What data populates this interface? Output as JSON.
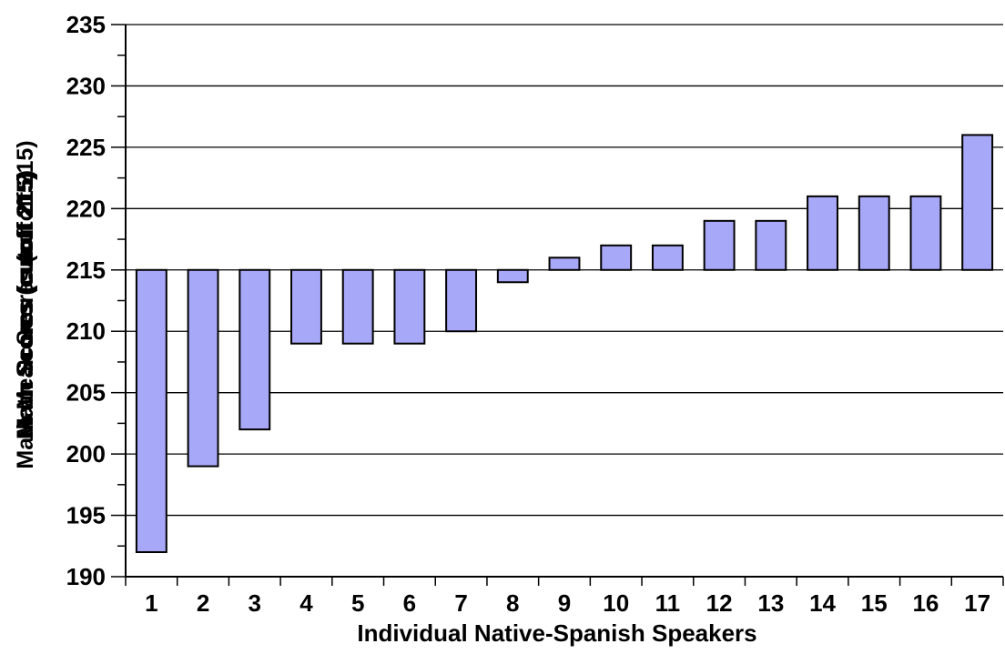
{
  "chart_data": {
    "type": "bar",
    "title": "",
    "xlabel": "Individual Native-Spanish Speakers",
    "ylabel_overlapping": [
      "Math Scores (cutoff 215)",
      "Mean Scores (cutoff 215)",
      "Math Mean Scores (cutoff 215)"
    ],
    "baseline": 215,
    "ylim": [
      190,
      235
    ],
    "yticks": [
      190,
      195,
      200,
      205,
      210,
      215,
      220,
      225,
      230,
      235
    ],
    "categories": [
      "1",
      "2",
      "3",
      "4",
      "5",
      "6",
      "7",
      "8",
      "9",
      "10",
      "11",
      "12",
      "13",
      "14",
      "15",
      "16",
      "17"
    ],
    "series": [
      {
        "values": [
          192,
          199,
          202,
          209,
          209,
          209,
          210,
          214,
          216,
          217,
          217,
          219,
          219,
          221,
          221,
          221,
          226
        ]
      }
    ],
    "grid": "horizontal",
    "bar_color": "#a8a8f8",
    "bar_border_color": "#000000",
    "legend": "none"
  }
}
